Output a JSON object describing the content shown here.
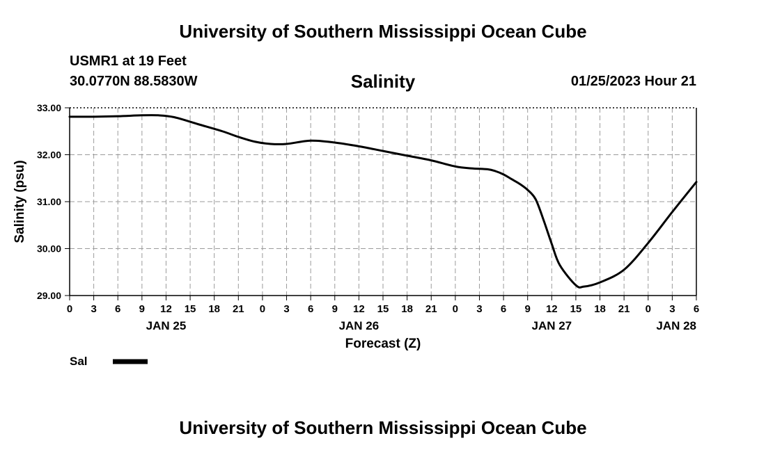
{
  "header": {
    "title": "University of Southern Mississippi Ocean Cube",
    "station": "USMR1 at 19 Feet",
    "coords": "30.0770N  88.5830W",
    "valid_time": "01/25/2023 Hour 21"
  },
  "footer": {
    "title": "University of Southern Mississippi Ocean Cube"
  },
  "chart_data": {
    "type": "line",
    "title": "Salinity",
    "xlabel": "Forecast (Z)",
    "ylabel": "Salinity (psu)",
    "xlim_hours": [
      0,
      78
    ],
    "ylim": [
      29.0,
      33.0
    ],
    "y_ticks": [
      "29.00",
      "30.00",
      "31.00",
      "32.00",
      "33.00"
    ],
    "x_tick_labels": [
      "0",
      "3",
      "6",
      "9",
      "12",
      "15",
      "18",
      "21",
      "0",
      "3",
      "6",
      "9",
      "12",
      "15",
      "18",
      "21",
      "0",
      "3",
      "6",
      "9",
      "12",
      "15",
      "18",
      "21",
      "0",
      "3",
      "6"
    ],
    "date_labels": [
      {
        "label": "JAN 25",
        "hour": 12
      },
      {
        "label": "JAN 26",
        "hour": 36
      },
      {
        "label": "JAN 27",
        "hour": 60
      },
      {
        "label": "JAN 28",
        "hour": 78
      }
    ],
    "grid": true,
    "legend": {
      "position": "bottom-left",
      "label": "Sal"
    },
    "series": [
      {
        "name": "Sal",
        "color": "#000000",
        "x": [
          0,
          3,
          6,
          9,
          11,
          13,
          16,
          19,
          21,
          23,
          25,
          27,
          30,
          33,
          36,
          39,
          42,
          45,
          48,
          50,
          52,
          53,
          54,
          55,
          56,
          57,
          58,
          59,
          60,
          61,
          63,
          64,
          66,
          69,
          72,
          75,
          78
        ],
        "y": [
          32.81,
          32.81,
          32.82,
          32.84,
          32.84,
          32.8,
          32.65,
          32.5,
          32.38,
          32.28,
          32.23,
          32.23,
          32.3,
          32.26,
          32.18,
          32.08,
          31.98,
          31.88,
          31.75,
          31.71,
          31.69,
          31.65,
          31.58,
          31.48,
          31.38,
          31.25,
          31.05,
          30.6,
          30.1,
          29.65,
          29.22,
          29.19,
          29.28,
          29.55,
          30.12,
          30.78,
          31.42
        ]
      }
    ]
  }
}
